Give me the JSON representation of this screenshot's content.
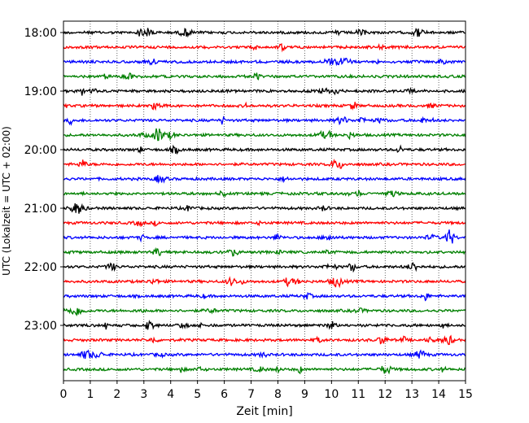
{
  "chart_data": {
    "type": "line",
    "title": "",
    "xlabel": "Zeit  [min]",
    "ylabel": "UTC (Lokalzeit = UTC + 02:00)",
    "xlim": [
      0,
      15
    ],
    "x_ticks": [
      "0",
      "1",
      "2",
      "3",
      "4",
      "5",
      "6",
      "7",
      "8",
      "9",
      "10",
      "11",
      "12",
      "13",
      "14",
      "15"
    ],
    "y_ticks": [
      "18:00",
      "19:00",
      "20:00",
      "21:00",
      "22:00",
      "23:00"
    ],
    "trace_interval_min": 15,
    "trace_start": "18:00",
    "trace_count": 24,
    "color_cycle": [
      "#000000",
      "#ff0000",
      "#0000ff",
      "#008000"
    ],
    "grid": "vertical dotted at each minute",
    "description": "seismogram (helicorder); each row is a 15-minute trace"
  }
}
